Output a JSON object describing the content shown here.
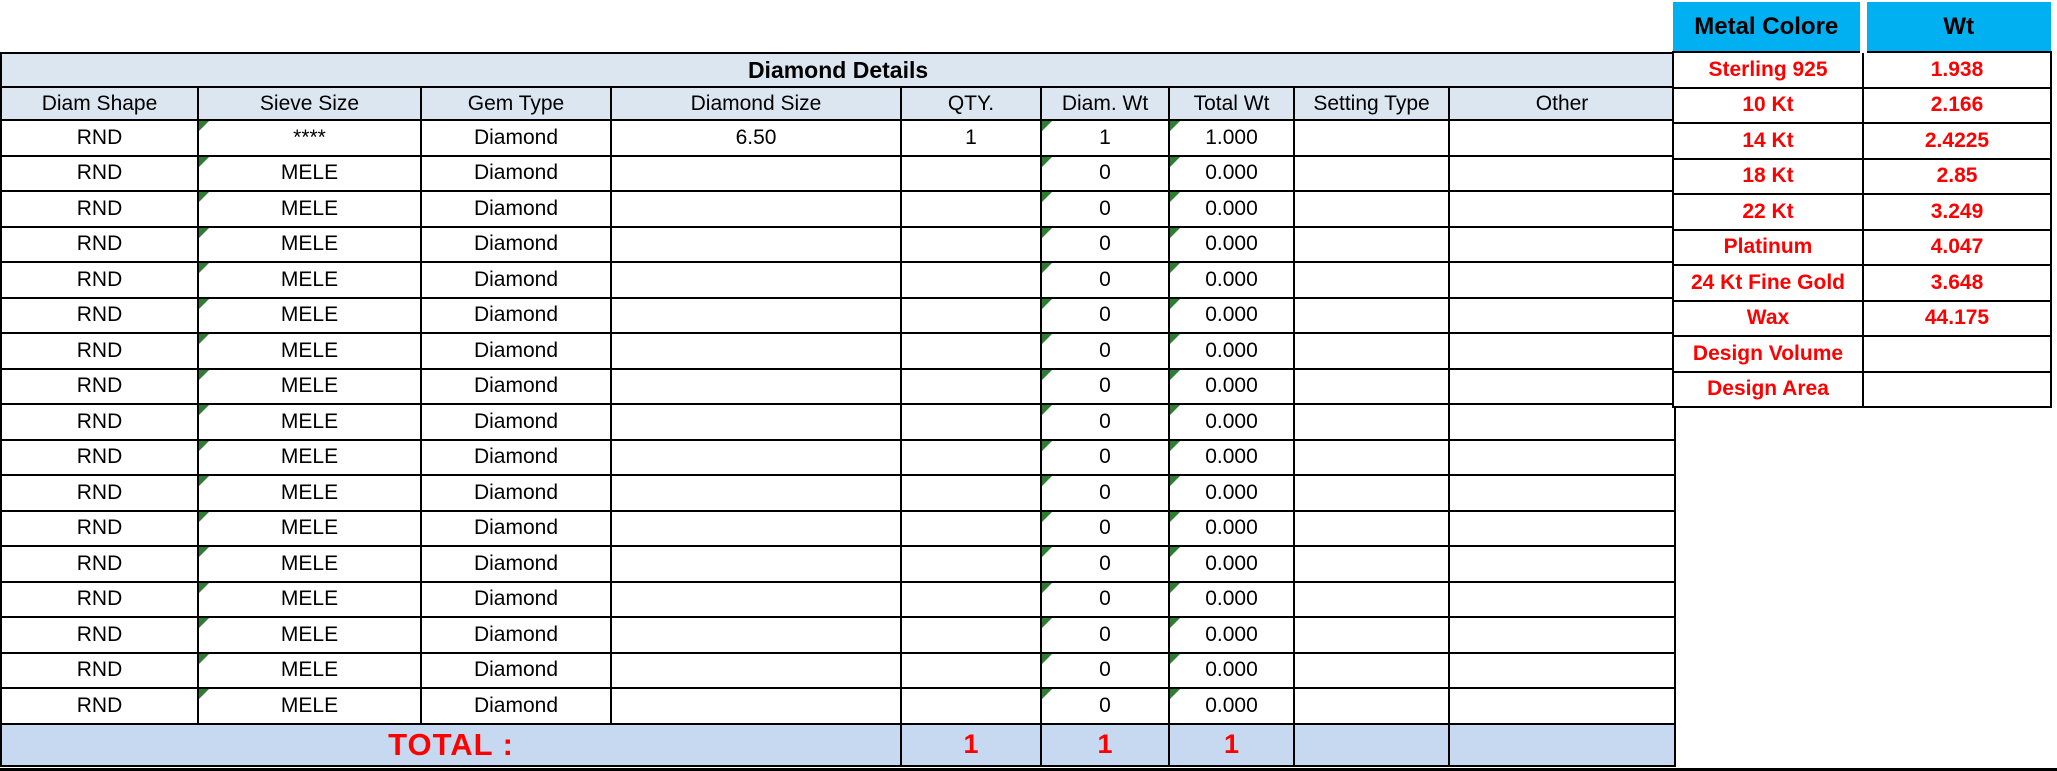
{
  "colors": {
    "header_fill": "#dce6f1",
    "total_fill": "#c6d9f0",
    "metal_header_fill": "#00b0f0",
    "red_text": "#ff0000",
    "error_indicator_green": "#2e7d32",
    "border": "#000000"
  },
  "main_table": {
    "title": "Diamond Details",
    "columns": [
      "Diam Shape",
      "Sieve Size",
      "Gem Type",
      "Diamond Size",
      "QTY.",
      "Diam. Wt",
      "Total Wt",
      "Setting Type",
      "Other"
    ],
    "rows": [
      [
        "RND",
        "****",
        "Diamond",
        "6.50",
        "1",
        "1",
        "1.000",
        "",
        ""
      ],
      [
        "RND",
        "MELE",
        "Diamond",
        "",
        "",
        "0",
        "0.000",
        "",
        ""
      ],
      [
        "RND",
        "MELE",
        "Diamond",
        "",
        "",
        "0",
        "0.000",
        "",
        ""
      ],
      [
        "RND",
        "MELE",
        "Diamond",
        "",
        "",
        "0",
        "0.000",
        "",
        ""
      ],
      [
        "RND",
        "MELE",
        "Diamond",
        "",
        "",
        "0",
        "0.000",
        "",
        ""
      ],
      [
        "RND",
        "MELE",
        "Diamond",
        "",
        "",
        "0",
        "0.000",
        "",
        ""
      ],
      [
        "RND",
        "MELE",
        "Diamond",
        "",
        "",
        "0",
        "0.000",
        "",
        ""
      ],
      [
        "RND",
        "MELE",
        "Diamond",
        "",
        "",
        "0",
        "0.000",
        "",
        ""
      ],
      [
        "RND",
        "MELE",
        "Diamond",
        "",
        "",
        "0",
        "0.000",
        "",
        ""
      ],
      [
        "RND",
        "MELE",
        "Diamond",
        "",
        "",
        "0",
        "0.000",
        "",
        ""
      ],
      [
        "RND",
        "MELE",
        "Diamond",
        "",
        "",
        "0",
        "0.000",
        "",
        ""
      ],
      [
        "RND",
        "MELE",
        "Diamond",
        "",
        "",
        "0",
        "0.000",
        "",
        ""
      ],
      [
        "RND",
        "MELE",
        "Diamond",
        "",
        "",
        "0",
        "0.000",
        "",
        ""
      ],
      [
        "RND",
        "MELE",
        "Diamond",
        "",
        "",
        "0",
        "0.000",
        "",
        ""
      ],
      [
        "RND",
        "MELE",
        "Diamond",
        "",
        "",
        "0",
        "0.000",
        "",
        ""
      ],
      [
        "RND",
        "MELE",
        "Diamond",
        "",
        "",
        "0",
        "0.000",
        "",
        ""
      ],
      [
        "RND",
        "MELE",
        "Diamond",
        "",
        "",
        "0",
        "0.000",
        "",
        ""
      ]
    ],
    "total": {
      "label": "TOTAL :",
      "qty": "1",
      "diam_wt": "1",
      "total_wt": "1"
    }
  },
  "metal_table": {
    "headers": [
      "Metal Colore",
      "Wt"
    ],
    "rows": [
      [
        "Sterling 925",
        "1.938"
      ],
      [
        "10 Kt",
        "2.166"
      ],
      [
        "14 Kt",
        "2.4225"
      ],
      [
        "18 Kt",
        "2.85"
      ],
      [
        "22 Kt",
        "3.249"
      ],
      [
        "Platinum",
        "4.047"
      ],
      [
        "24 Kt Fine Gold",
        "3.648"
      ],
      [
        "Wax",
        "44.175"
      ],
      [
        "Design Volume",
        ""
      ],
      [
        "Design Area",
        ""
      ]
    ]
  }
}
